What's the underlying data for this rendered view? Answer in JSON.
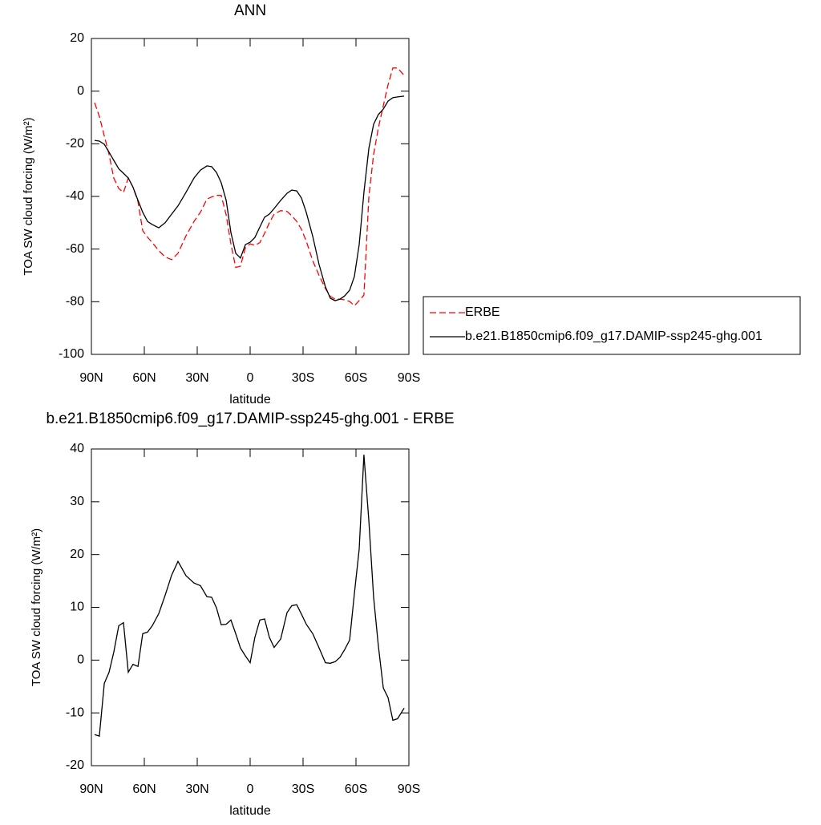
{
  "chart_data": [
    {
      "type": "line",
      "title": "ANN",
      "xlabel": "latitude",
      "ylabel": "TOA SW cloud forcing (W/m²)",
      "xlim": [
        90,
        -90
      ],
      "xticks": [
        {
          "value": 90,
          "label": "90N"
        },
        {
          "value": 60,
          "label": "60N"
        },
        {
          "value": 30,
          "label": "30N"
        },
        0,
        {
          "value": -30,
          "label": "30S"
        },
        {
          "value": -60,
          "label": "60S"
        },
        {
          "value": -90,
          "label": "90S"
        }
      ],
      "ylim": [
        -100,
        20
      ],
      "yticks": [
        -100,
        -80,
        -60,
        -40,
        -20,
        0,
        20
      ],
      "legend": "outside-right",
      "x": [
        88.2,
        85.5,
        82.7,
        80,
        77.3,
        74.5,
        71.8,
        69.1,
        66.4,
        63.6,
        60.9,
        58.2,
        55.5,
        51.8,
        48.2,
        44.5,
        40.9,
        36.4,
        31.8,
        28.2,
        24.5,
        21.8,
        19.1,
        16.4,
        13.6,
        10.9,
        8.2,
        5.5,
        2.7,
        0,
        -2.7,
        -5.5,
        -8.2,
        -10.9,
        -13.6,
        -17.3,
        -20.9,
        -23.6,
        -26.4,
        -29.1,
        -31.8,
        -35.5,
        -39.1,
        -42.7,
        -45.5,
        -48.2,
        -50.9,
        -53.6,
        -56.4,
        -59.1,
        -61.8,
        -64.5,
        -67.3,
        -70,
        -72.7,
        -75.5,
        -78.2,
        -80.9,
        -83.6,
        -87.3
      ],
      "series": [
        {
          "name": "ERBE",
          "color": "#ff0000",
          "style": "dashed",
          "values": [
            -4.4,
            -9.6,
            -17,
            -24,
            -33,
            -37,
            -38.5,
            -33,
            -36.5,
            -42,
            -53,
            -55.5,
            -57.5,
            -60.6,
            -63,
            -64,
            -61.6,
            -55,
            -49.5,
            -46,
            -41,
            -40.2,
            -39.6,
            -39.6,
            -47,
            -58,
            -67,
            -66.5,
            -59.5,
            -58,
            -58.6,
            -57.5,
            -54,
            -50,
            -46.7,
            -45.4,
            -45.7,
            -47.3,
            -49.5,
            -52.5,
            -57,
            -64.5,
            -70,
            -75,
            -78,
            -79,
            -79,
            -79.3,
            -79.9,
            -81.5,
            -79.6,
            -77.5,
            -40,
            -24,
            -14,
            -5.5,
            2.4,
            8.8,
            8.8,
            6
          ]
        },
        {
          "name": "b.e21.B1850cmip6.f09_g17.DAMIP-ssp245-ghg.001",
          "color": "#000000",
          "style": "solid",
          "values": [
            -18.7,
            -19,
            -20.2,
            -23.2,
            -26.3,
            -29.5,
            -31.2,
            -33,
            -36.5,
            -41.5,
            -46,
            -49.5,
            -50.7,
            -51.9,
            -50,
            -46.7,
            -43.6,
            -38.5,
            -33,
            -30,
            -28.4,
            -28.7,
            -30.9,
            -34.8,
            -41.5,
            -53.7,
            -61.6,
            -63.4,
            -58.3,
            -57.4,
            -55.6,
            -51.6,
            -47.9,
            -46.7,
            -44.6,
            -41.5,
            -38.8,
            -37.6,
            -37.9,
            -40.6,
            -46.1,
            -55.2,
            -65.9,
            -74.4,
            -78.7,
            -79.6,
            -79,
            -77.8,
            -75.6,
            -70.4,
            -58.3,
            -38.5,
            -21.7,
            -12.6,
            -8.9,
            -6.8,
            -3.8,
            -2.5,
            -2.2,
            -1.9
          ]
        }
      ]
    },
    {
      "type": "line",
      "title": "b.e21.B1850cmip6.f09_g17.DAMIP-ssp245-ghg.001 - ERBE",
      "xlabel": "latitude",
      "ylabel": "TOA SW cloud forcing (W/m²)",
      "xlim": [
        90,
        -90
      ],
      "xticks": [
        {
          "value": 90,
          "label": "90N"
        },
        {
          "value": 60,
          "label": "60N"
        },
        {
          "value": 30,
          "label": "30N"
        },
        0,
        {
          "value": -30,
          "label": "30S"
        },
        {
          "value": -60,
          "label": "60S"
        },
        {
          "value": -90,
          "label": "90S"
        }
      ],
      "ylim": [
        -20,
        40
      ],
      "yticks": [
        -20,
        -10,
        0,
        10,
        20,
        30,
        40
      ],
      "x": [
        88.2,
        85.5,
        82.7,
        80,
        77.3,
        74.5,
        71.8,
        69.1,
        66.4,
        63.6,
        60.9,
        58.2,
        55.5,
        51.8,
        48.2,
        44.5,
        40.9,
        36.4,
        31.8,
        28.2,
        24.5,
        21.8,
        19.1,
        16.4,
        13.6,
        10.9,
        8.2,
        5.5,
        2.7,
        0,
        -2.7,
        -5.5,
        -8.2,
        -10.9,
        -13.6,
        -17.3,
        -20.9,
        -23.6,
        -26.4,
        -29.1,
        -31.8,
        -35.5,
        -39.1,
        -42.7,
        -45.5,
        -48.2,
        -50.9,
        -53.6,
        -56.4,
        -59.1,
        -61.8,
        -64.5,
        -67.3,
        -70,
        -72.7,
        -75.5,
        -78.2,
        -80.9,
        -83.6,
        -87.3
      ],
      "series": [
        {
          "color": "#000000",
          "style": "solid",
          "values": [
            -14.1,
            -14.4,
            -4.4,
            -2.3,
            1.5,
            6.5,
            7.1,
            -2.3,
            -0.8,
            -1.2,
            5,
            5.3,
            6.5,
            8.8,
            12.3,
            16.1,
            18.7,
            16,
            14.6,
            14.1,
            12,
            11.9,
            9.9,
            6.7,
            6.8,
            7.6,
            5,
            2.3,
            0.8,
            -0.5,
            4.3,
            7.6,
            7.8,
            4.3,
            2.4,
            4,
            9,
            10.3,
            10.5,
            8.7,
            6.8,
            5,
            2.3,
            -0.5,
            -0.6,
            -0.3,
            0.5,
            2,
            3.8,
            12.6,
            21,
            38.9,
            26.3,
            11.9,
            2.7,
            -5.3,
            -7.1,
            -11.4,
            -11.1,
            -9.1
          ]
        }
      ]
    }
  ]
}
